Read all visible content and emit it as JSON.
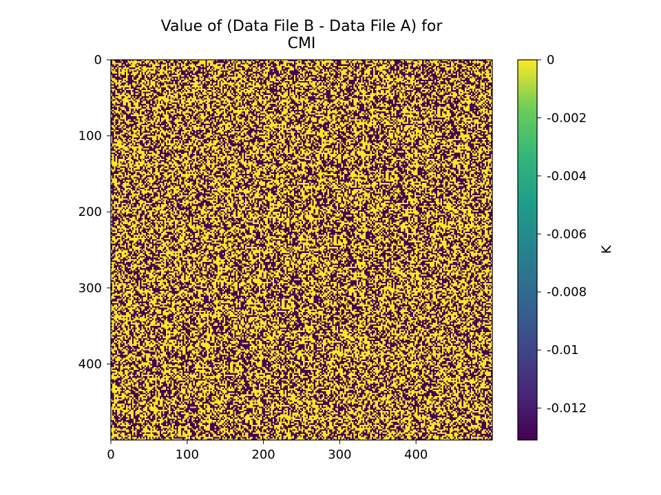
{
  "chart_data": {
    "type": "heatmap",
    "title_lines": [
      "Value of (Data File B - Data File A) for",
      "CMI"
    ],
    "image_size": [
      500,
      500
    ],
    "x_ticks": [
      0,
      100,
      200,
      300,
      400
    ],
    "y_ticks": [
      0,
      100,
      200,
      300,
      400
    ],
    "xlim": [
      0,
      500
    ],
    "ylim": [
      500,
      0
    ],
    "y_axis_inverted": true,
    "colormap": "viridis",
    "value_range": [
      -0.0131,
      0
    ],
    "cell_values": [
      0,
      -0.0131
    ],
    "fraction_zero": 0.5,
    "colorbar": {
      "label": "K",
      "ticks": [
        0,
        -0.002,
        -0.004,
        -0.006,
        -0.008,
        -0.01,
        -0.012
      ],
      "tick_labels": [
        "0",
        "-0.002",
        "-0.004",
        "-0.006",
        "-0.008",
        "-0.01",
        "-0.012"
      ]
    },
    "colors": {
      "high": "#fde725",
      "low": "#440154"
    }
  }
}
